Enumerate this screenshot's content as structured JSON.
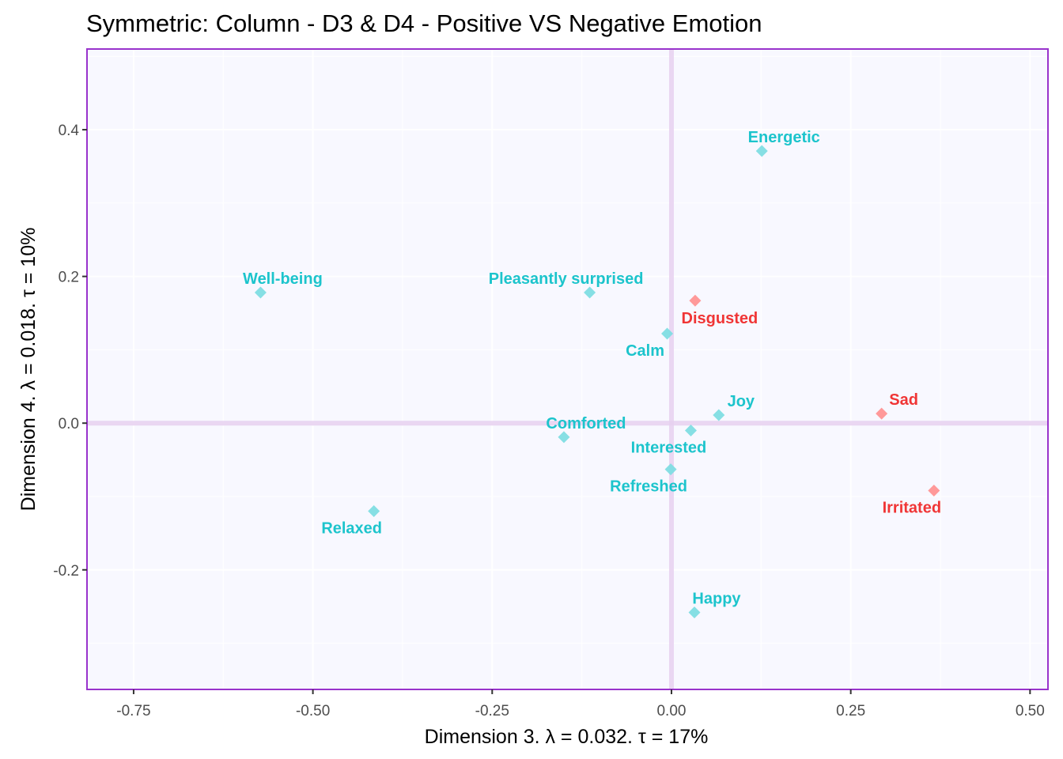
{
  "chart_data": {
    "type": "scatter",
    "title": "Symmetric: Column - D3 & D4 - Positive VS Negative Emotion",
    "xlabel": "Dimension 3.   λ = 0.032.  τ = 17%",
    "ylabel": "Dimension 4.   λ = 0.018.  τ = 10%",
    "xlim": [
      -0.815,
      0.525
    ],
    "ylim": [
      -0.363,
      0.51
    ],
    "x_ticks": [
      -0.75,
      -0.5,
      -0.25,
      0.0,
      0.25,
      0.5
    ],
    "x_tick_labels": [
      "-0.75",
      "-0.50",
      "-0.25",
      "0.00",
      "0.25",
      "0.50"
    ],
    "y_ticks": [
      -0.2,
      0.0,
      0.2,
      0.4
    ],
    "y_tick_labels": [
      "-0.2",
      "0.0",
      "0.2",
      "0.4"
    ],
    "grid": true,
    "reference_lines": {
      "x": 0,
      "y": 0
    },
    "colors": {
      "positive_point": "#7FDDE3",
      "positive_label": "#1CC4CC",
      "negative_point": "#FF9494",
      "negative_label": "#F03535",
      "panel_border": "#9933CC",
      "panel_background": "#F8F8FF",
      "reference_line": "#E6D0F0"
    },
    "series": [
      {
        "name": "Positive",
        "points": [
          {
            "label": "Energetic",
            "x": 0.126,
            "y": 0.371,
            "label_pos": "above-right"
          },
          {
            "label": "Well-being",
            "x": -0.573,
            "y": 0.178,
            "label_pos": "above-right"
          },
          {
            "label": "Pleasantly surprised",
            "x": -0.114,
            "y": 0.178,
            "label_pos": "above-left"
          },
          {
            "label": "Calm",
            "x": -0.006,
            "y": 0.122,
            "label_pos": "below-left"
          },
          {
            "label": "Joy",
            "x": 0.066,
            "y": 0.011,
            "label_pos": "above-right"
          },
          {
            "label": "Comforted",
            "x": -0.15,
            "y": -0.019,
            "label_pos": "above-right"
          },
          {
            "label": "Interested",
            "x": 0.027,
            "y": -0.01,
            "label_pos": "below-left"
          },
          {
            "label": "Refreshed",
            "x": -0.001,
            "y": -0.063,
            "label_pos": "below-left"
          },
          {
            "label": "Relaxed",
            "x": -0.415,
            "y": -0.12,
            "label_pos": "below-left"
          },
          {
            "label": "Happy",
            "x": 0.032,
            "y": -0.258,
            "label_pos": "above-right"
          }
        ]
      },
      {
        "name": "Negative",
        "points": [
          {
            "label": "Disgusted",
            "x": 0.033,
            "y": 0.167,
            "label_pos": "below-right"
          },
          {
            "label": "Sad",
            "x": 0.293,
            "y": 0.013,
            "label_pos": "above-right"
          },
          {
            "label": "Irritated",
            "x": 0.366,
            "y": -0.092,
            "label_pos": "below-left"
          }
        ]
      }
    ]
  }
}
